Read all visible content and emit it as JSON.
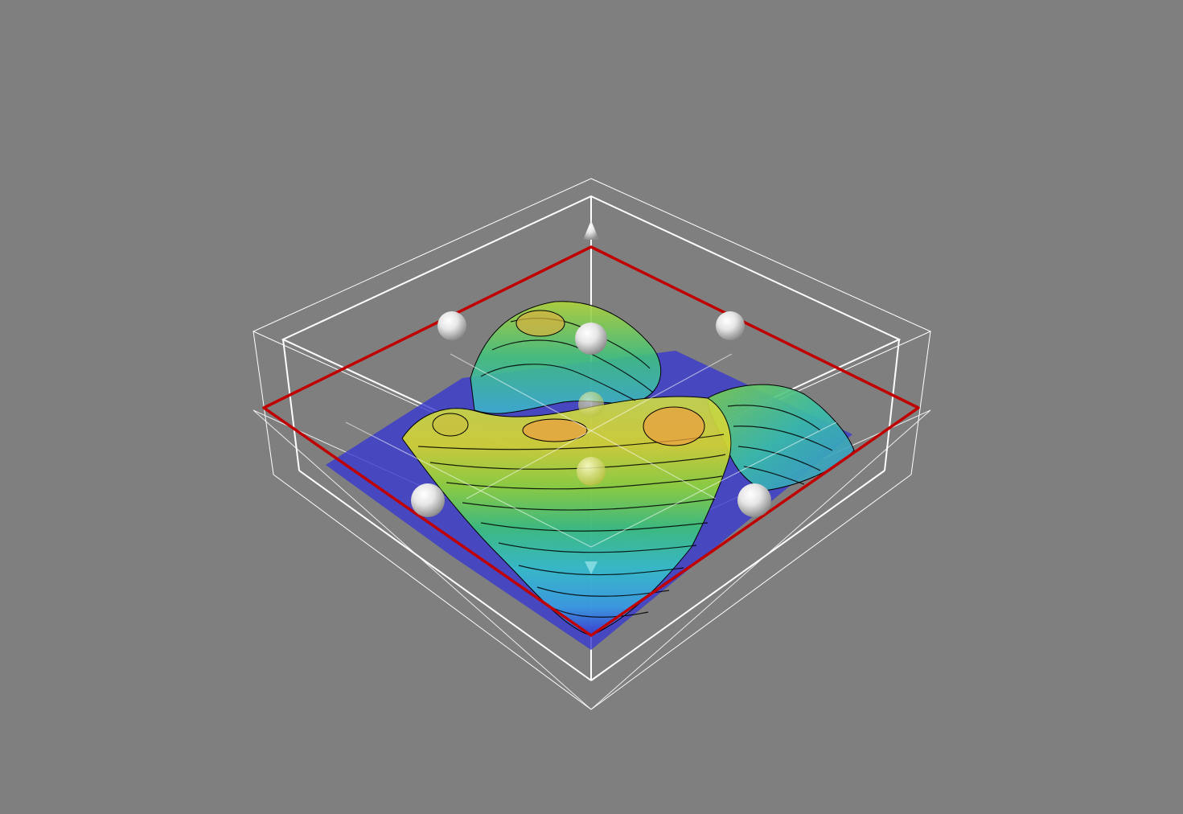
{
  "viewer": {
    "background": "#7f7f7f",
    "box_color": "#ffffff",
    "plane_color": "#c00000",
    "handle_color": "#ffffff",
    "contour_color": "#000000"
  },
  "surface": {
    "colormap": [
      "#3a3ad0",
      "#3a9ee0",
      "#36c0c8",
      "#3cc27a",
      "#8ed43a",
      "#d6d430",
      "#e8a840"
    ],
    "contour_levels": 12,
    "translucent": true
  },
  "handles": {
    "sphere_count": 8,
    "arrow_count": 2,
    "names": [
      "back-left",
      "top-center",
      "back-right",
      "center-top",
      "center-middle",
      "center-bottom",
      "front-left",
      "front-right"
    ]
  }
}
